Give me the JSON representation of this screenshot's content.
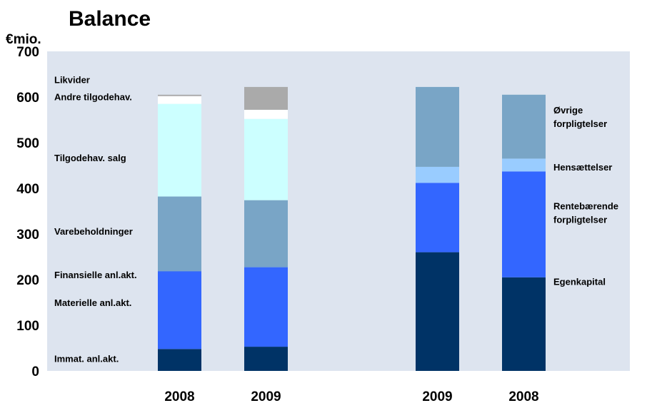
{
  "chart_data": {
    "type": "bar",
    "stacked": true,
    "title": "Balance",
    "unit_label": "€mio.",
    "ylim": [
      0,
      700
    ],
    "yticks": [
      0,
      100,
      200,
      300,
      400,
      500,
      600,
      700
    ],
    "grid": false,
    "background": "#dde4ef",
    "groups": [
      {
        "name": "assets",
        "categories": [
          "2008",
          "2009"
        ],
        "series": [
          {
            "name": "Immat. anl.akt.",
            "color": "#003366",
            "values": [
              48,
              53
            ]
          },
          {
            "name": "Materielle anl.akt.",
            "color": "#3366ff",
            "values": [
              170,
              174
            ]
          },
          {
            "name": "Finansielle anl.akt.",
            "color": "#6699cc",
            "values": [
              2,
              2
            ]
          },
          {
            "name": "Varebeholdninger",
            "color": "#79a5c6",
            "values": [
              162,
              145
            ]
          },
          {
            "name": "Tilgodehav. salg",
            "color": "#ccffff",
            "values": [
              203,
              178
            ]
          },
          {
            "name": "Andre tilgodehav.",
            "color": "#ffffff",
            "values": [
              17,
              20
            ]
          },
          {
            "name": "Likvider",
            "color": "#aaaaaa",
            "values": [
              3,
              50
            ]
          }
        ]
      },
      {
        "name": "liabilities",
        "categories": [
          "2009",
          "2008"
        ],
        "series": [
          {
            "name": "Egenkapital",
            "color": "#003366",
            "values": [
              260,
              205
            ]
          },
          {
            "name": "Rentebærende forpligtelser",
            "color": "#3366ff",
            "values": [
              152,
              232
            ]
          },
          {
            "name": "Hensættelser",
            "color": "#99ccff",
            "values": [
              35,
              28
            ]
          },
          {
            "name": "Øvrige forpligtelser",
            "color": "#79a5c6",
            "values": [
              175,
              140
            ]
          }
        ]
      }
    ],
    "left_labels": [
      {
        "text": "Likvider",
        "at": 638
      },
      {
        "text": "Andre tilgodehav.",
        "at": 601
      },
      {
        "text": "Tilgodehav. salg",
        "at": 467
      },
      {
        "text": "Varebeholdninger",
        "at": 306
      },
      {
        "text": "Finansielle anl.akt.",
        "at": 211
      },
      {
        "text": "Materielle anl.akt.",
        "at": 150
      },
      {
        "text": "Immat. anl.akt.",
        "at": 27
      }
    ],
    "right_labels": [
      {
        "lines": [
          "Øvrige",
          "forpligtelser"
        ],
        "at": 557
      },
      {
        "lines": [
          "Hensættelser"
        ],
        "at": 447
      },
      {
        "lines": [
          "Rentebærende",
          "forpligtelser"
        ],
        "at": 347
      },
      {
        "lines": [
          "Egenkapital"
        ],
        "at": 196
      }
    ]
  }
}
